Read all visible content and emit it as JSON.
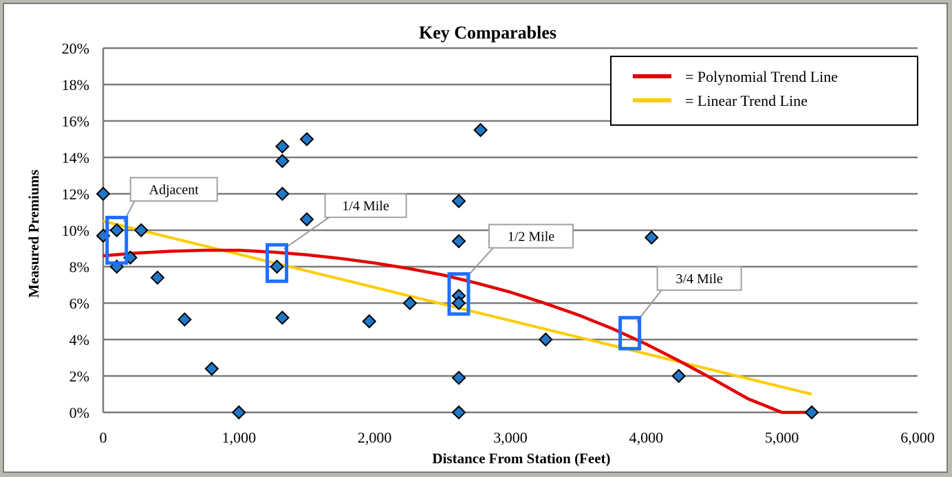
{
  "chart_data": {
    "type": "scatter",
    "title": "Key Comparables",
    "xlabel": "Distance From Station (Feet)",
    "ylabel": "Measured Premiums",
    "xlim": [
      0,
      6000
    ],
    "ylim": [
      0,
      20
    ],
    "x_ticks": [
      0,
      1000,
      2000,
      3000,
      4000,
      5000,
      6000
    ],
    "x_tick_labels": [
      "0",
      "1,000",
      "2,000",
      "3,000",
      "4,000",
      "5,000",
      "6,000"
    ],
    "y_ticks": [
      0,
      2,
      4,
      6,
      8,
      10,
      12,
      14,
      16,
      18,
      20
    ],
    "y_tick_labels": [
      "0%",
      "2%",
      "4%",
      "6%",
      "8%",
      "10%",
      "12%",
      "14%",
      "16%",
      "18%",
      "20%"
    ],
    "grid": "horizontal",
    "legend_position": "top-right",
    "marker_color": "#1f78c8",
    "points": [
      {
        "x": 0,
        "y": 12.0
      },
      {
        "x": 0,
        "y": 9.7
      },
      {
        "x": 100,
        "y": 10.0
      },
      {
        "x": 100,
        "y": 8.0
      },
      {
        "x": 200,
        "y": 8.5
      },
      {
        "x": 280,
        "y": 10.0
      },
      {
        "x": 400,
        "y": 7.4
      },
      {
        "x": 600,
        "y": 5.1
      },
      {
        "x": 800,
        "y": 2.4
      },
      {
        "x": 1000,
        "y": 0.0
      },
      {
        "x": 1280,
        "y": 8.0
      },
      {
        "x": 1320,
        "y": 14.6
      },
      {
        "x": 1320,
        "y": 13.8
      },
      {
        "x": 1320,
        "y": 12.0
      },
      {
        "x": 1320,
        "y": 5.2
      },
      {
        "x": 1500,
        "y": 15.0
      },
      {
        "x": 1500,
        "y": 10.6
      },
      {
        "x": 1960,
        "y": 5.0
      },
      {
        "x": 2260,
        "y": 6.0
      },
      {
        "x": 2620,
        "y": 11.6
      },
      {
        "x": 2620,
        "y": 9.4
      },
      {
        "x": 2620,
        "y": 6.4
      },
      {
        "x": 2620,
        "y": 6.0
      },
      {
        "x": 2620,
        "y": 1.9
      },
      {
        "x": 2620,
        "y": 0.0
      },
      {
        "x": 2780,
        "y": 15.5
      },
      {
        "x": 3260,
        "y": 4.0
      },
      {
        "x": 4040,
        "y": 9.6
      },
      {
        "x": 4240,
        "y": 2.0
      },
      {
        "x": 5220,
        "y": 0.0
      }
    ],
    "trend_lines": [
      {
        "name": "= Polynomial Trend Line",
        "color": "#e30000",
        "x": [
          0,
          250,
          500,
          750,
          1000,
          1250,
          1500,
          1750,
          2000,
          2250,
          2500,
          2750,
          3000,
          3250,
          3500,
          3750,
          4000,
          4250,
          4500,
          4750,
          5000,
          5220
        ],
        "y": [
          8.6,
          8.75,
          8.85,
          8.9,
          8.9,
          8.8,
          8.65,
          8.45,
          8.2,
          7.9,
          7.55,
          7.1,
          6.6,
          6.0,
          5.35,
          4.6,
          3.75,
          2.8,
          1.8,
          0.75,
          -0.3,
          -1.2
        ]
      },
      {
        "name": "= Linear Trend Line",
        "color": "#ffcc00",
        "x": [
          0,
          5220
        ],
        "y": [
          10.5,
          1.0
        ]
      }
    ],
    "callouts": [
      {
        "label": "Adjacent",
        "x": 100,
        "y_low": 8.2,
        "y_high": 10.7
      },
      {
        "label": "1/4 Mile",
        "x": 1280,
        "y_low": 7.2,
        "y_high": 9.2
      },
      {
        "label": "1/2 Mile",
        "x": 2620,
        "y_low": 5.4,
        "y_high": 7.6
      },
      {
        "label": "3/4 Mile",
        "x": 3880,
        "y_low": 3.5,
        "y_high": 5.2
      }
    ]
  }
}
